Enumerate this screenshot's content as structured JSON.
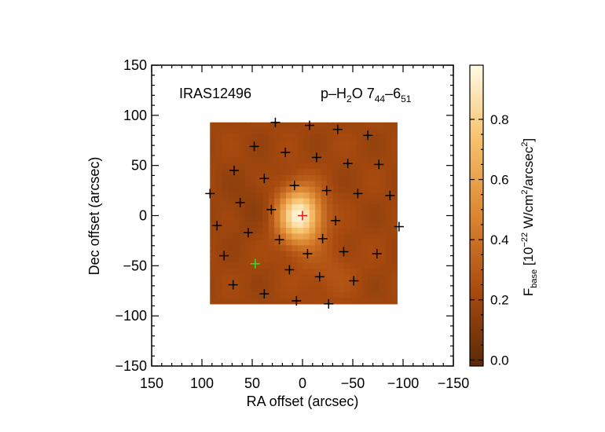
{
  "chart_data": {
    "type": "heatmap",
    "annotation_left": "IRAS12496",
    "line_label": {
      "prefix": "p–H",
      "sub1": "2",
      "mid": "O 7",
      "sub2": "44",
      "dash": "–6",
      "sub3": "51"
    },
    "xlabel": "RA offset (arcsec)",
    "ylabel": "Dec offset (arcsec)",
    "xlim": [
      150,
      -150
    ],
    "ylim": [
      -150,
      150
    ],
    "x_ticks": [
      150,
      100,
      50,
      0,
      -50,
      -100,
      -150
    ],
    "x_tick_labels": [
      "150",
      "100",
      "50",
      "0",
      "−50",
      "−100",
      "−150"
    ],
    "y_ticks": [
      150,
      100,
      50,
      0,
      -50,
      -100,
      -150
    ],
    "y_tick_labels": [
      "150",
      "100",
      "50",
      "0",
      "−50",
      "−100",
      "−150"
    ],
    "map_extent": {
      "x": [
        92,
        -94
      ],
      "y": [
        -88,
        93
      ]
    },
    "peak": {
      "x": 3,
      "y": 0,
      "value": 0.97
    },
    "colorbar": {
      "min": -0.02,
      "max": 0.98,
      "ticks": [
        0.0,
        0.2,
        0.4,
        0.6,
        0.8
      ],
      "tick_labels": [
        "0.0",
        "0.2",
        "0.4",
        "0.6",
        "0.8"
      ],
      "label": {
        "main": "F",
        "sub": "base",
        "open": " [10",
        "exp1": "−22",
        "units1": " W/cm",
        "exp2": "2",
        "units2": "/arcsec",
        "exp3": "2",
        "close": "]"
      },
      "colors": [
        "#5a2a08",
        "#a84a0f",
        "#dc8530",
        "#f7c06a",
        "#fffbe4"
      ]
    },
    "spaxels_black": [
      [
        -7,
        90
      ],
      [
        27,
        93
      ],
      [
        -35,
        86
      ],
      [
        -65,
        80
      ],
      [
        48,
        69
      ],
      [
        17,
        63
      ],
      [
        -14,
        58
      ],
      [
        -45,
        52
      ],
      [
        -76,
        51
      ],
      [
        68,
        45
      ],
      [
        38,
        37
      ],
      [
        8,
        30
      ],
      [
        -24,
        25
      ],
      [
        -55,
        22
      ],
      [
        -87,
        20
      ],
      [
        92,
        22
      ],
      [
        62,
        13
      ],
      [
        31,
        6
      ],
      [
        -33,
        -5
      ],
      [
        -96,
        -11
      ],
      [
        85,
        -10
      ],
      [
        54,
        -17
      ],
      [
        23,
        -24
      ],
      [
        -20,
        -23
      ],
      [
        -41,
        -36
      ],
      [
        -74,
        -38
      ],
      [
        78,
        -40
      ],
      [
        -5,
        -38
      ],
      [
        13,
        -54
      ],
      [
        -17,
        -61
      ],
      [
        -51,
        -65
      ],
      [
        69,
        -69
      ],
      [
        38,
        -78
      ],
      [
        6,
        -85
      ],
      [
        -26,
        -88
      ]
    ],
    "spaxel_center": [
      0,
      0
    ],
    "spaxel_offset": [
      47,
      -48
    ],
    "marker_colors": {
      "default": "#000000",
      "center": "#e0201a",
      "offset": "#2adf2a"
    }
  }
}
